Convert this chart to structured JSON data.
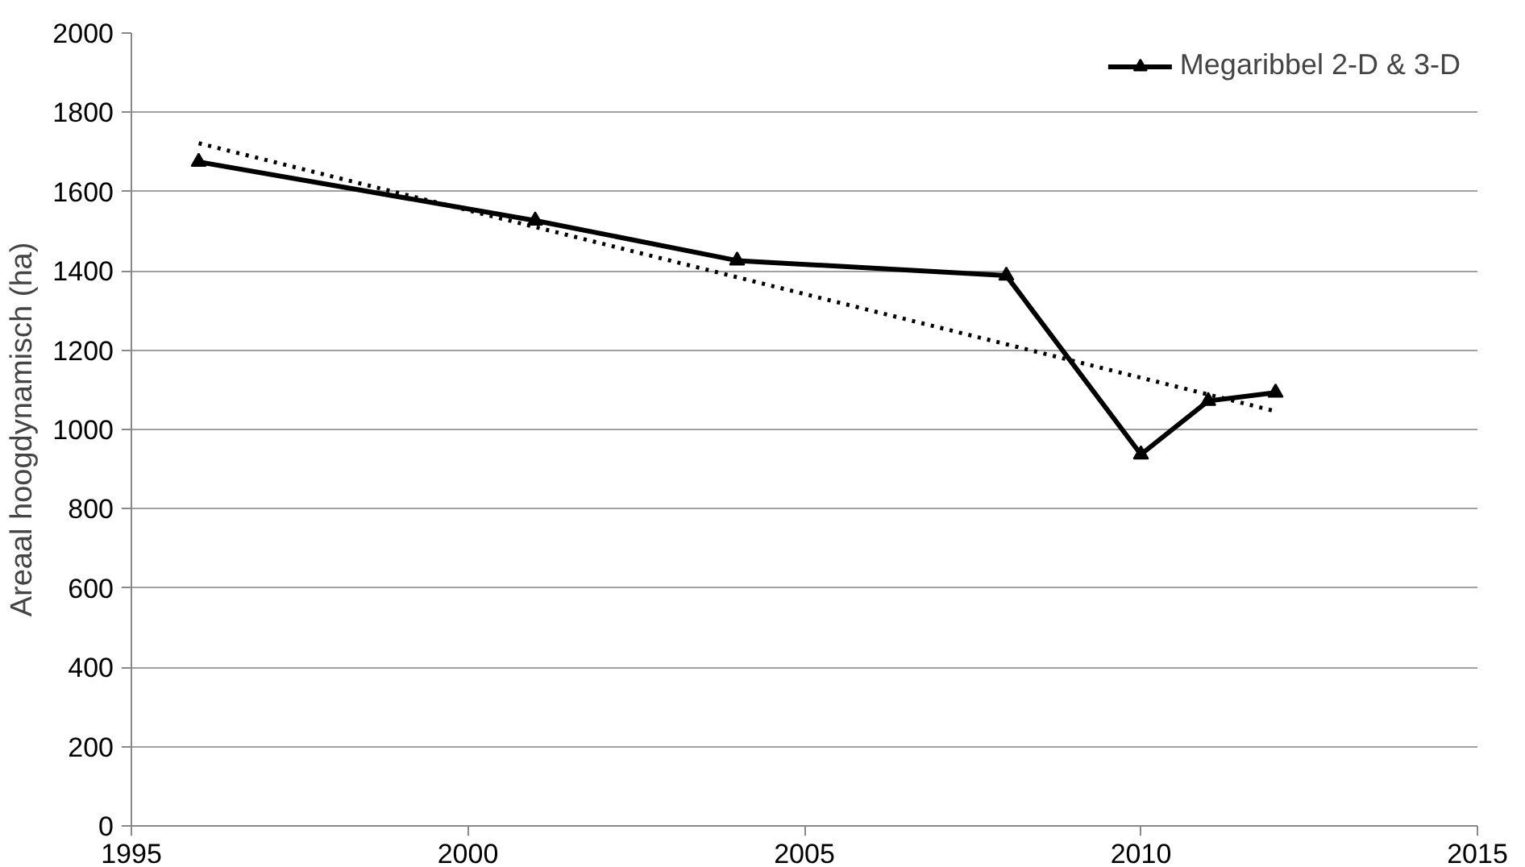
{
  "chart_data": {
    "type": "line",
    "ylabel": "Areaal hoogdynamisch (ha)",
    "xlim": [
      1995,
      2015
    ],
    "xticks": [
      1995,
      2000,
      2005,
      2010,
      2015
    ],
    "ylim": [
      0,
      2000
    ],
    "yticks": [
      0,
      200,
      400,
      600,
      800,
      1000,
      1200,
      1400,
      1600,
      1800,
      2000
    ],
    "grid": "y",
    "legend": "top right",
    "series": [
      {
        "name": "Megaribbel 2-D & 3-D",
        "color": "#000000",
        "x": [
          1996,
          2001,
          2004,
          2008,
          2010,
          2011,
          2012
        ],
        "values": [
          1675,
          1527,
          1426,
          1388,
          937,
          1072,
          1093
        ],
        "marker": "triangle",
        "line_style": "solid"
      },
      {
        "color": "#000000",
        "x": [
          1996,
          2012
        ],
        "values": [
          1722,
          1046
        ],
        "marker": "none",
        "line_style": "dotted"
      }
    ]
  }
}
